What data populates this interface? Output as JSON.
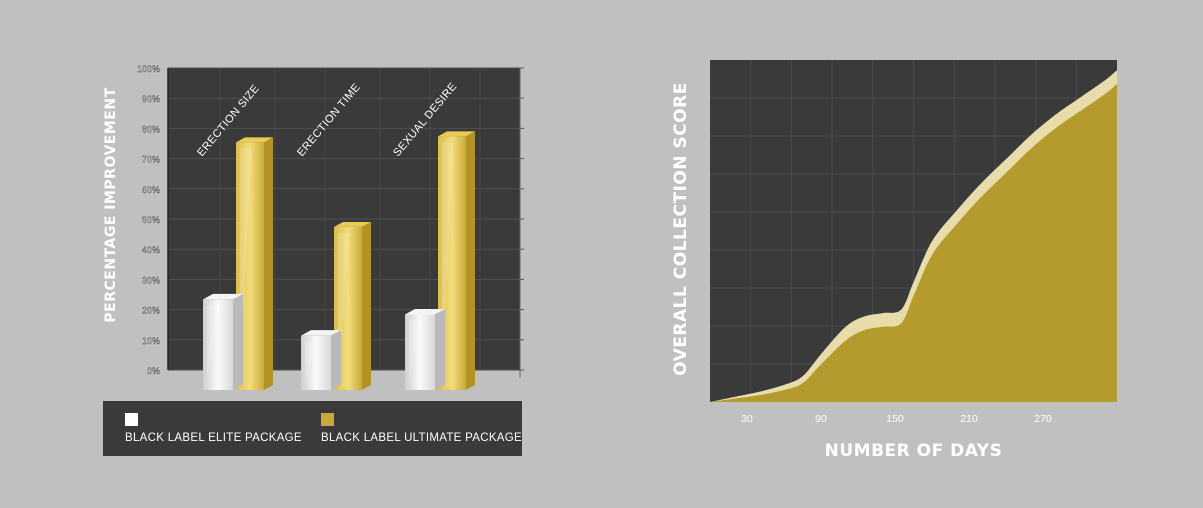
{
  "chart_data": [
    {
      "type": "bar",
      "title": "",
      "ylabel": "PERCENTAGE IMPROVEMENT",
      "xlabel": "",
      "ylim": [
        0,
        100
      ],
      "yticks": [
        "0%",
        "10%",
        "20%",
        "30%",
        "40%",
        "50%",
        "60%",
        "70%",
        "80%",
        "90%",
        "100%"
      ],
      "categories": [
        "ERECTION SIZE",
        "ERECTION TIME",
        "SEXUAL DESIRE"
      ],
      "series": [
        {
          "name": "BLACK LABEL ELITE PACKAGE",
          "color": "#e6e6e6",
          "values": [
            30,
            18,
            25
          ]
        },
        {
          "name": "BLACK LABEL ULTIMATE PACKAGE",
          "color": "#c8a93a",
          "values": [
            82,
            54,
            84
          ]
        }
      ],
      "legend_position": "bottom",
      "grid": true
    },
    {
      "type": "area",
      "title": "",
      "xlabel": "NUMBER OF DAYS",
      "ylabel": "OVERALL COLLECTION SCORE",
      "xlim": [
        0,
        330
      ],
      "ylim": [
        0,
        100
      ],
      "xticks": [
        30,
        90,
        150,
        210,
        270
      ],
      "grid": true,
      "series": [
        {
          "name": "",
          "color": "#e8dcaa",
          "x": [
            0,
            20,
            40,
            60,
            75,
            90,
            110,
            125,
            140,
            155,
            165,
            180,
            200,
            220,
            240,
            260,
            280,
            300,
            320,
            330
          ],
          "y": [
            0,
            1.5,
            3,
            5,
            7.5,
            14,
            22,
            25,
            26,
            27,
            35,
            47,
            56,
            64,
            71,
            78,
            84,
            89,
            94,
            97
          ]
        },
        {
          "name": "",
          "color": "#b59a2e",
          "x": [
            0,
            20,
            40,
            60,
            75,
            90,
            110,
            125,
            140,
            155,
            165,
            180,
            200,
            220,
            240,
            260,
            280,
            300,
            320,
            330
          ],
          "y": [
            0,
            1,
            2,
            3.5,
            5.5,
            11,
            18,
            21,
            22,
            23,
            31,
            43,
            52,
            60,
            67,
            74,
            80,
            85,
            90,
            93
          ]
        }
      ]
    }
  ]
}
